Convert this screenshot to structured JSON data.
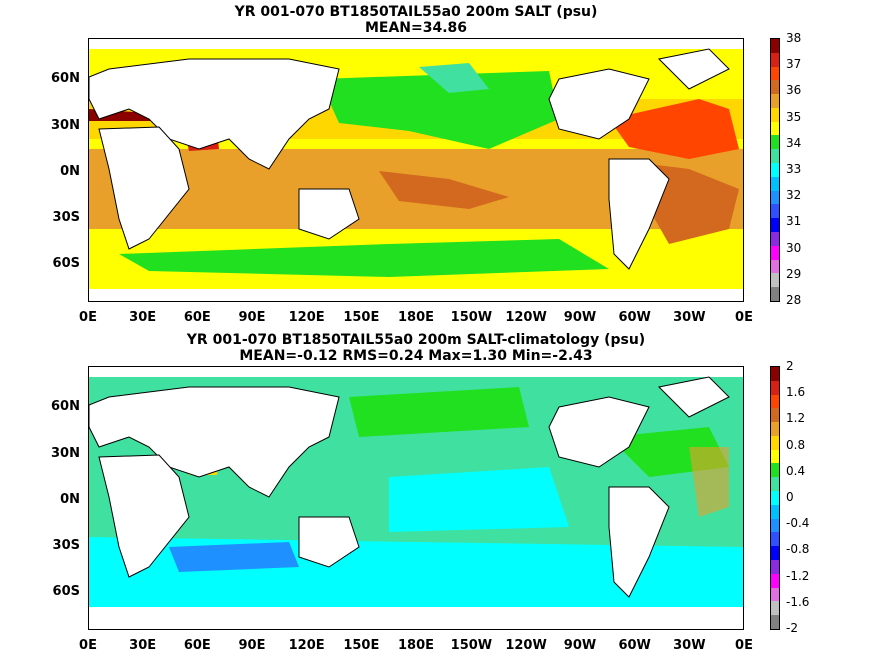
{
  "maps": [
    {
      "title_line1": "YR 001-070 BT1850TAIL55a0 200m SALT (psu)",
      "title_line2": "MEAN=34.86",
      "colorbar_labels": [
        "38",
        "37",
        "36",
        "35",
        "34",
        "33",
        "32",
        "31",
        "30",
        "29",
        "28"
      ],
      "colorbar_colors": [
        "#8b0000",
        "#d92015",
        "#ff4500",
        "#d2691e",
        "#e8a02a",
        "#ffd700",
        "#ffff00",
        "#20e020",
        "#40e0a0",
        "#00ffff",
        "#00bfff",
        "#1e90ff",
        "#3050ff",
        "#0000ff",
        "#8a2be2",
        "#ff00ff",
        "#e070e0",
        "#c0c0c0",
        "#808080"
      ]
    },
    {
      "title_line1": "YR 001-070 BT1850TAIL55a0 200m SALT-climatology (psu)",
      "title_line2": "MEAN=-0.12   RMS=0.24   Max=1.30   Min=-2.43",
      "colorbar_labels": [
        "2",
        "1.6",
        "1.2",
        "0.8",
        "0.4",
        "0",
        "-0.4",
        "-0.8",
        "-1.2",
        "-1.6",
        "-2"
      ],
      "colorbar_colors": [
        "#8b0000",
        "#d92015",
        "#ff4500",
        "#d2691e",
        "#e8a02a",
        "#ffd700",
        "#ffff00",
        "#20e020",
        "#40e0a0",
        "#00ffff",
        "#00bfff",
        "#1e90ff",
        "#3050ff",
        "#0000ff",
        "#8a2be2",
        "#ff00ff",
        "#e070e0",
        "#c0c0c0",
        "#808080"
      ]
    }
  ],
  "x_ticks": [
    "0E",
    "30E",
    "60E",
    "90E",
    "120E",
    "150E",
    "180E",
    "150W",
    "120W",
    "90W",
    "60W",
    "30W",
    "0E"
  ],
  "y_ticks": [
    "60N",
    "30N",
    "0N",
    "30S",
    "60S"
  ]
}
